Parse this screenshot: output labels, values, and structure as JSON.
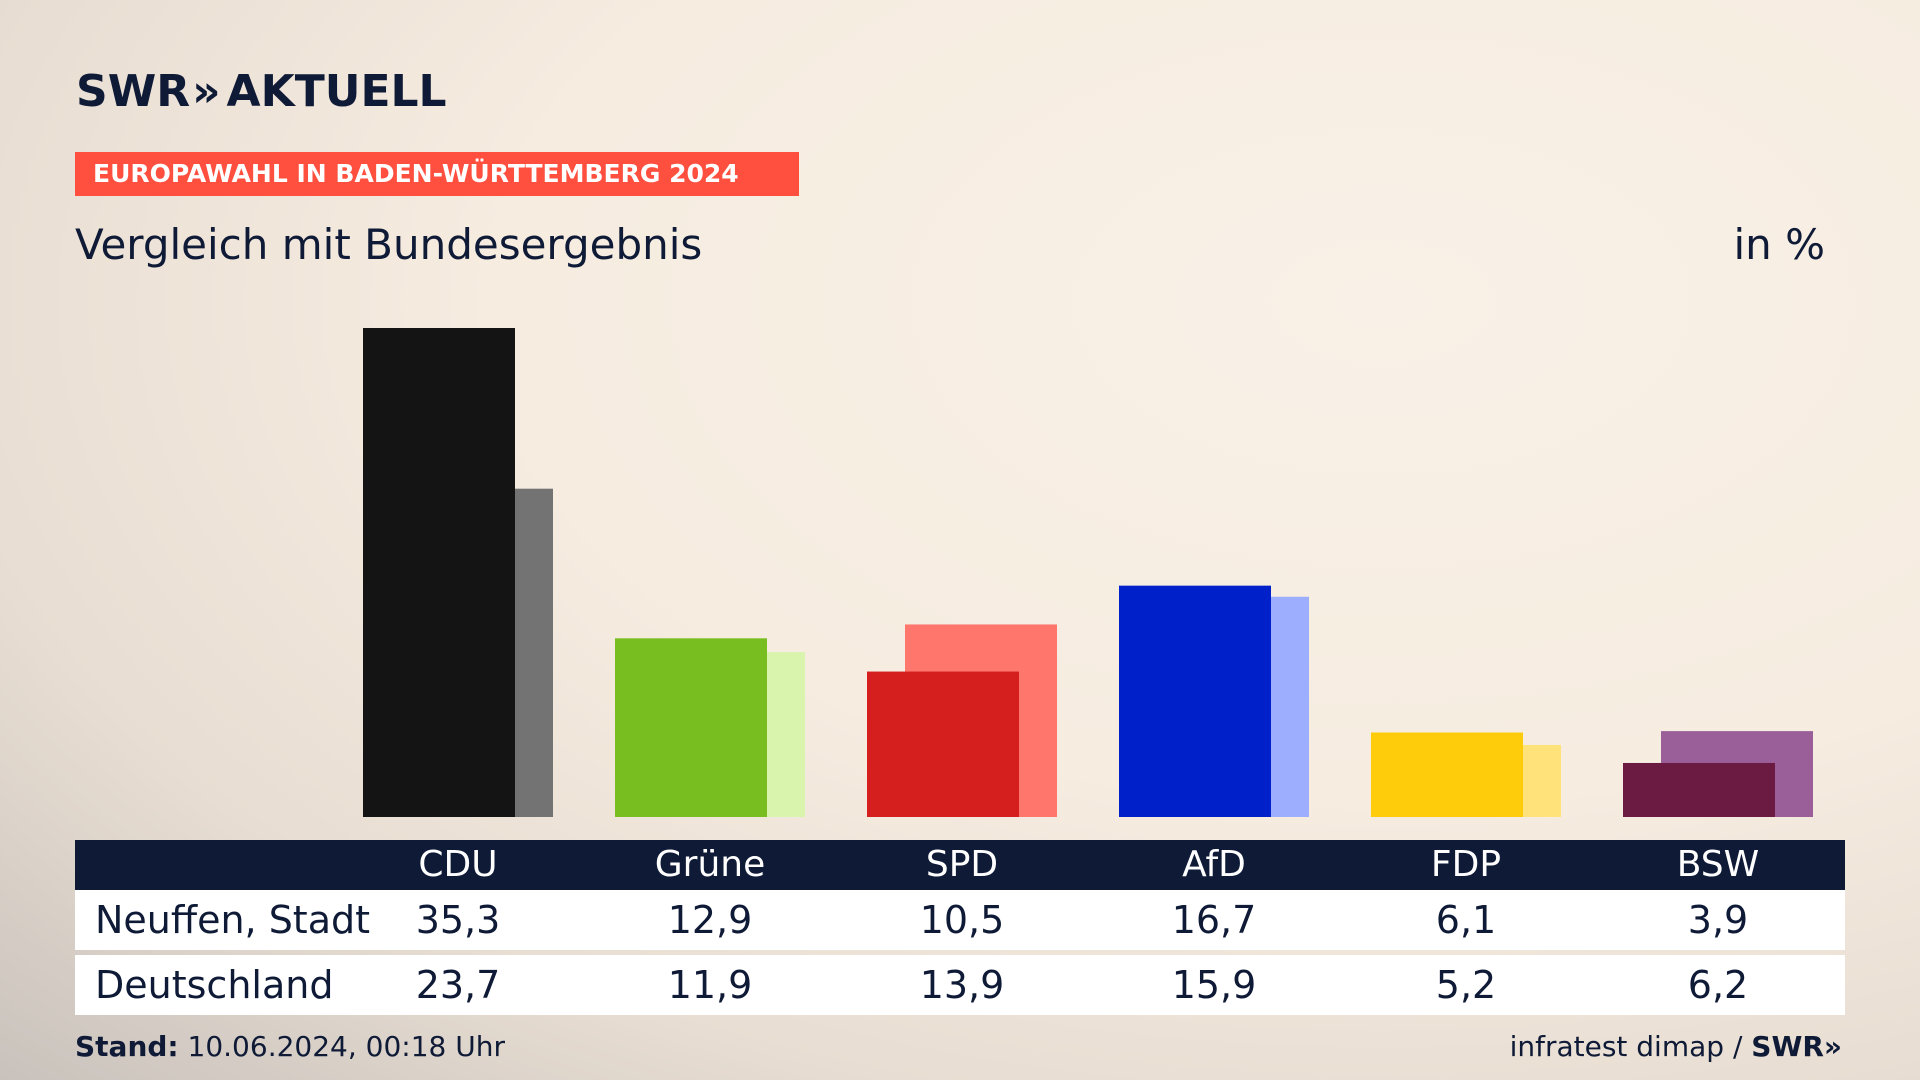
{
  "header": {
    "logo_text": "SWR",
    "logo_chevrons": "»",
    "logo_suffix": "AKTUELL",
    "banner": "EUROPAWAHL IN BADEN-WÜRTTEMBERG 2024",
    "subtitle": "Vergleich mit Bundesergebnis",
    "unit": "in %"
  },
  "table": {
    "parties": [
      "CDU",
      "Grüne",
      "SPD",
      "AfD",
      "FDP",
      "BSW"
    ],
    "rows": [
      {
        "label": "Neuffen, Stadt",
        "values": [
          "35,3",
          "12,9",
          "10,5",
          "16,7",
          "6,1",
          "3,9"
        ]
      },
      {
        "label": "Deutschland",
        "values": [
          "23,7",
          "11,9",
          "13,9",
          "15,9",
          "5,2",
          "6,2"
        ]
      }
    ]
  },
  "footer": {
    "stand_label": "Stand:",
    "stand_value": "10.06.2024, 00:18 Uhr",
    "source": "infratest dimap /",
    "brand": "SWR»"
  },
  "chart_data": {
    "type": "bar",
    "categories": [
      "CDU",
      "Grüne",
      "SPD",
      "AfD",
      "FDP",
      "BSW"
    ],
    "series": [
      {
        "name": "Neuffen, Stadt",
        "values": [
          35.3,
          12.9,
          10.5,
          16.7,
          6.1,
          3.9
        ]
      },
      {
        "name": "Deutschland",
        "values": [
          23.7,
          11.9,
          13.9,
          15.9,
          5.2,
          6.2
        ]
      }
    ],
    "colors_local": [
      "#141414",
      "#78be20",
      "#d51f1f",
      "#0021c9",
      "#ffcc0b",
      "#6b1a42"
    ],
    "colors_national": [
      "#737373",
      "#d9f5ad",
      "#ff766c",
      "#9daeff",
      "#ffe27a",
      "#9a5e98"
    ],
    "title": "",
    "xlabel": "",
    "ylabel": "",
    "ylim": [
      0,
      35.3
    ],
    "grid": false,
    "legend": "table below chart"
  }
}
